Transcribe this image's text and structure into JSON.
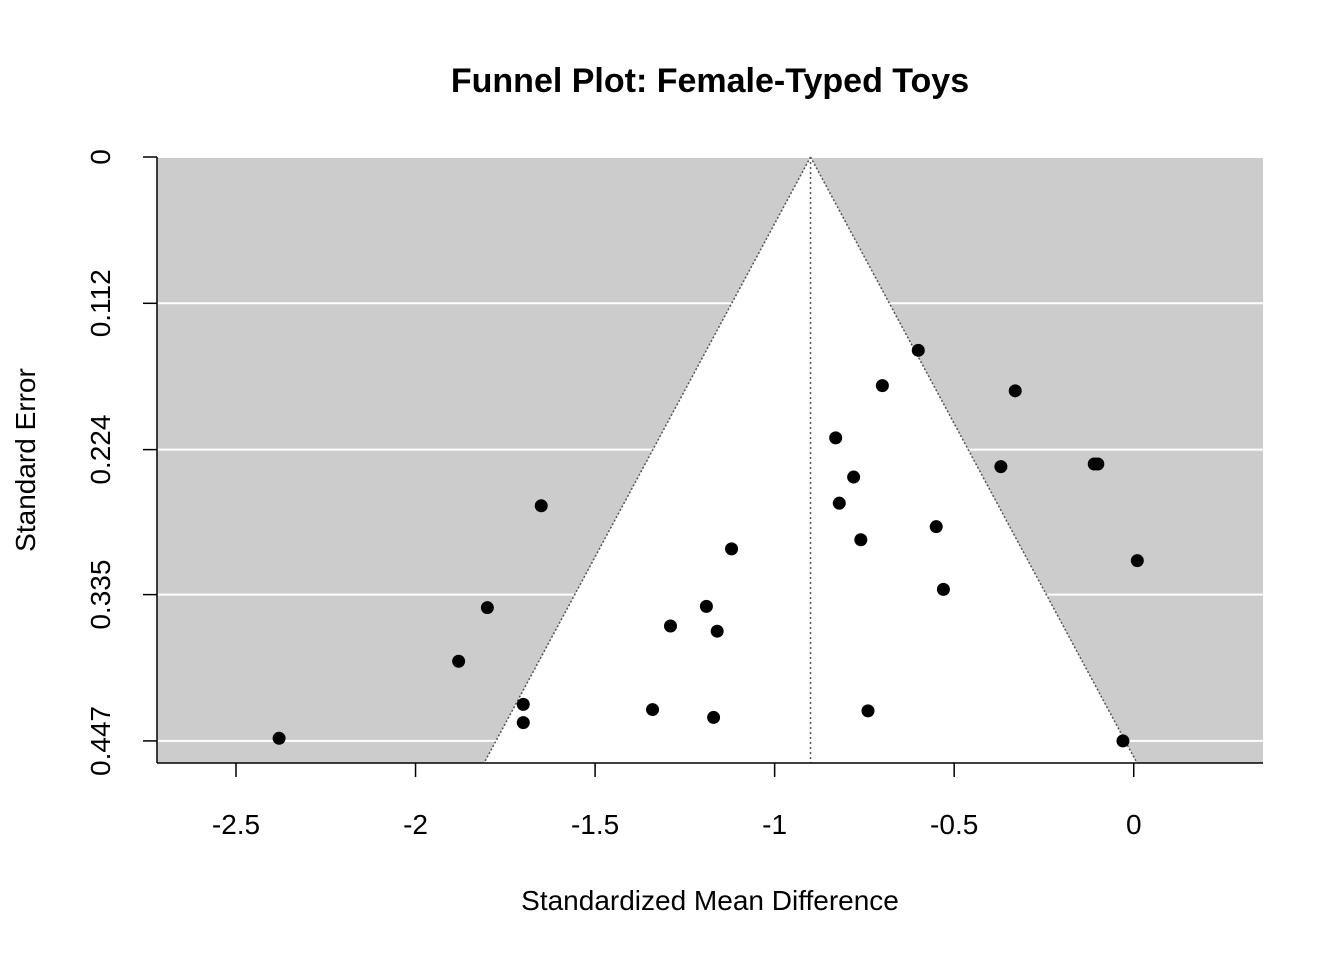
{
  "chart_data": {
    "type": "scatter",
    "subtype": "funnel",
    "title": "Funnel Plot: Female-Typed Toys",
    "xlabel": "Standardized Mean Difference",
    "ylabel": "Standard Error",
    "xlim": [
      -2.72,
      0.36
    ],
    "ylim": [
      0.4639,
      0
    ],
    "x_ticks": [
      -2.5,
      -2,
      -1.5,
      -1,
      -0.5,
      0
    ],
    "x_tick_labels": [
      "-2.5",
      "-2",
      "-1.5",
      "-1",
      "-0.5",
      "0"
    ],
    "y_ticks": [
      0,
      0.112,
      0.224,
      0.335,
      0.447
    ],
    "y_tick_labels": [
      "0",
      "0.112",
      "0.224",
      "0.335",
      "0.447"
    ],
    "grid": "horizontal, white, at y ticks",
    "pooled_estimate": -0.9,
    "ci_multiplier": 1.96,
    "colors": {
      "region_outside": "#cccccc",
      "region_inside": "#ffffff",
      "points": "#000000",
      "gridlines": "#ffffff",
      "funnel_lines": "#555555",
      "axes": "#000000"
    },
    "points": [
      {
        "x": -0.6,
        "y": 0.148
      },
      {
        "x": -0.7,
        "y": 0.175
      },
      {
        "x": -0.33,
        "y": 0.179
      },
      {
        "x": -0.83,
        "y": 0.215
      },
      {
        "x": -0.37,
        "y": 0.237
      },
      {
        "x": -0.11,
        "y": 0.235
      },
      {
        "x": -0.1,
        "y": 0.235
      },
      {
        "x": -0.78,
        "y": 0.245
      },
      {
        "x": -0.82,
        "y": 0.265
      },
      {
        "x": -1.65,
        "y": 0.267
      },
      {
        "x": -0.55,
        "y": 0.283
      },
      {
        "x": -0.76,
        "y": 0.293
      },
      {
        "x": -1.12,
        "y": 0.3
      },
      {
        "x": 0.01,
        "y": 0.309
      },
      {
        "x": -0.53,
        "y": 0.331
      },
      {
        "x": -1.8,
        "y": 0.345
      },
      {
        "x": -1.19,
        "y": 0.344
      },
      {
        "x": -1.29,
        "y": 0.359
      },
      {
        "x": -1.16,
        "y": 0.363
      },
      {
        "x": -1.88,
        "y": 0.386
      },
      {
        "x": -1.7,
        "y": 0.419
      },
      {
        "x": -1.7,
        "y": 0.433
      },
      {
        "x": -1.34,
        "y": 0.423
      },
      {
        "x": -1.17,
        "y": 0.429
      },
      {
        "x": -0.74,
        "y": 0.424
      },
      {
        "x": -2.38,
        "y": 0.445
      },
      {
        "x": -0.03,
        "y": 0.447
      }
    ]
  }
}
